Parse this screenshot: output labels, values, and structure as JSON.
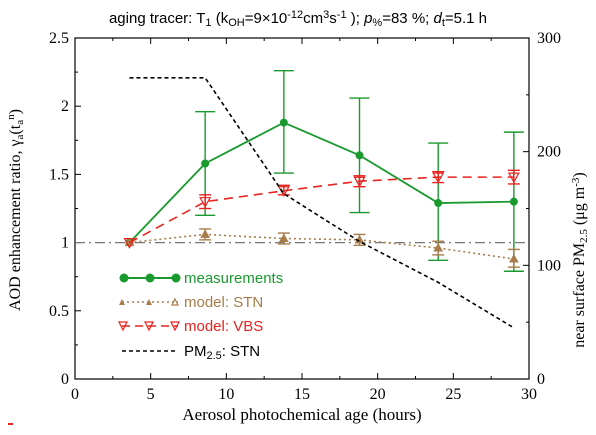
{
  "chart_data": {
    "type": "line",
    "title_parts": {
      "a": "aging tracer: T",
      "a_sub": "1",
      "b": " (k",
      "b_sub": "OH",
      "c": "=9×10",
      "c_sup": "-12",
      "d": "cm",
      "d_sup": "3",
      "e": "s",
      "e_sup": "-1",
      "f": " ); ",
      "p_var": "p",
      "p_sub": "%",
      "g": "=83 %; ",
      "d_var": "d",
      "d_sub": "t",
      "h": "=5.1 h"
    },
    "xlabel": "Aerosol photochemical age (hours)",
    "ylabel_parts": {
      "a": "AOD enhancement ratio, γ",
      "a_sub": "a",
      "b": "(t",
      "b_sub": "a",
      "b_sup": "n",
      "c": ")"
    },
    "y2label_parts": {
      "a": "near surface PM",
      "a_sub": "2.5",
      "b": " (μg m",
      "b_sup": "-3",
      "c": ")"
    },
    "xlim": [
      0,
      30
    ],
    "ylim": [
      0,
      2.5
    ],
    "y2lim": [
      0,
      300
    ],
    "x_ticks": [
      "0",
      "5",
      "10",
      "15",
      "20",
      "25",
      "30"
    ],
    "y_ticks": [
      "0",
      "0.5",
      "1",
      "1.5",
      "2",
      "2.5"
    ],
    "y2_ticks": [
      "0",
      "100",
      "200",
      "300"
    ],
    "reference_line": 1.0,
    "series": [
      {
        "name": "measurements",
        "color": "#1a9a2e",
        "style": "solid",
        "marker": "filled-circle",
        "x": [
          3.6,
          8.6,
          13.8,
          18.8,
          24.0,
          29.0
        ],
        "y": [
          1.0,
          1.58,
          1.88,
          1.64,
          1.29,
          1.3
        ],
        "err_low": [
          1.0,
          1.2,
          1.51,
          1.22,
          0.87,
          0.79
        ],
        "err_high": [
          1.0,
          1.96,
          2.26,
          2.06,
          1.73,
          1.81
        ]
      },
      {
        "name": "model: STN",
        "color": "#a87c4a",
        "style": "dotted",
        "marker": "open-triangle-up",
        "x": [
          3.6,
          8.6,
          13.8,
          18.8,
          24.0,
          29.0
        ],
        "y": [
          1.0,
          1.06,
          1.03,
          1.02,
          0.96,
          0.88
        ],
        "err_low": [
          1.0,
          1.02,
          0.99,
          0.98,
          0.91,
          0.82
        ],
        "err_high": [
          1.0,
          1.1,
          1.07,
          1.06,
          1.01,
          0.95
        ]
      },
      {
        "name": "model: VBS",
        "color": "#e8231f",
        "style": "dashed",
        "marker": "open-triangle-down",
        "x": [
          3.6,
          8.6,
          13.8,
          18.8,
          24.0,
          29.0
        ],
        "y": [
          1.0,
          1.3,
          1.38,
          1.45,
          1.48,
          1.48
        ],
        "err_low": [
          1.0,
          1.25,
          1.35,
          1.41,
          1.44,
          1.43
        ],
        "err_high": [
          1.0,
          1.35,
          1.42,
          1.49,
          1.52,
          1.53
        ]
      },
      {
        "name": "PM2.5: STN",
        "color": "#000000",
        "style": "short-dash",
        "axis": "right",
        "x": [
          3.6,
          8.6,
          13.8,
          18.8,
          24.0,
          29.0
        ],
        "y": [
          265,
          265,
          163,
          121,
          85,
          45
        ]
      }
    ],
    "legend": {
      "placement": "lower-left",
      "entries": [
        {
          "label": "measurements",
          "color": "#1a9a2e"
        },
        {
          "label": "model: STN",
          "color": "#a87c4a"
        },
        {
          "label": "model: VBS",
          "color": "#e8231f"
        },
        {
          "label_a": "PM",
          "label_sub": "2.5",
          "label_b": ": STN",
          "color": "#000000"
        }
      ]
    }
  }
}
